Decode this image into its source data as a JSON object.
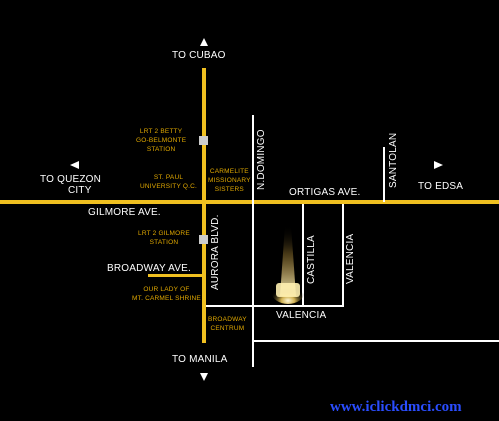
{
  "labels": {
    "to_cubao": "TO CUBAO",
    "to_quezon_city_line1": "TO QUEZON",
    "to_quezon_city_line2": "CITY",
    "to_edsa": "TO EDSA",
    "to_manila": "TO MANILA",
    "gilmore_ave": "GILMORE AVE.",
    "broadway_ave": "BROADWAY AVE.",
    "ortigas_ave": "ORTIGAS AVE.",
    "aurora_blvd": "AURORA BLVD.",
    "n_domingo": "N.DOMINGO",
    "santolan": "SANTOLAN",
    "castilla": "CASTILLA",
    "valencia_h": "VALENCIA",
    "valencia_v": "VALENCIA"
  },
  "landmarks": {
    "lrt2_betty_1": "LRT 2 BETTY",
    "lrt2_betty_2": "GO-BELMONTE",
    "lrt2_betty_3": "STATION",
    "st_paul_1": "ST. PAUL",
    "st_paul_2": "UNIVERSITY Q.C.",
    "carmelite_1": "CARMELITE",
    "carmelite_2": "MISSIONARY",
    "carmelite_3": "SISTERS",
    "lrt2_gilmore_1": "LRT 2 GILMORE",
    "lrt2_gilmore_2": "STATION",
    "our_lady_1": "OUR LADY OF",
    "our_lady_2": "MT. CARMEL SHRINE",
    "broadway_centrum_1": "BROADWAY",
    "broadway_centrum_2": "CENTRUM"
  },
  "watermark": "www.iclickdmci.com",
  "colors": {
    "background": "#000000",
    "main_road": "#f0c020",
    "side_road": "#ffffff",
    "landmark_text": "#e0a800",
    "watermark": "#2a4dff"
  },
  "icons": {
    "site_marker": "spotlight-glow",
    "lrt_station": "station-square",
    "direction": "triangle-arrow"
  }
}
